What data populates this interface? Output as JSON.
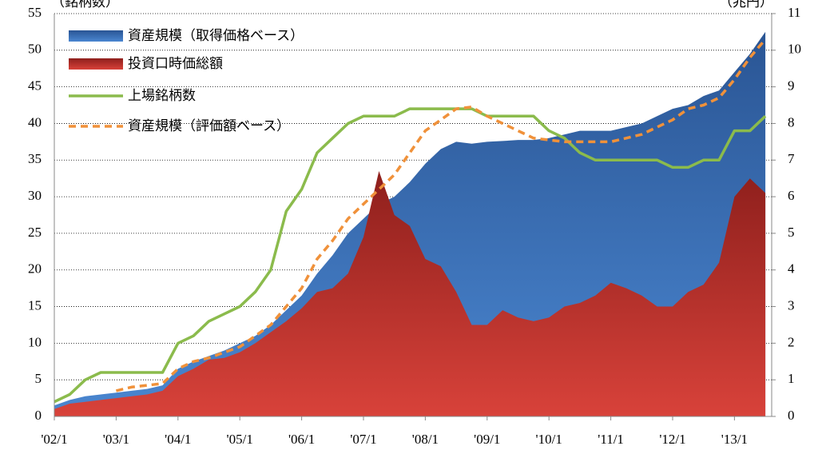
{
  "chart_data": {
    "type": "area",
    "y_label": "（銘柄数）",
    "y2_label": "（兆円）",
    "categories": [
      "'02/1",
      null,
      null,
      null,
      "'03/1",
      null,
      null,
      null,
      "'04/1",
      null,
      null,
      null,
      "'05/1",
      null,
      null,
      null,
      "'06/1",
      null,
      null,
      null,
      "'07/1",
      null,
      null,
      null,
      "'08/1",
      null,
      null,
      null,
      "'09/1",
      null,
      null,
      null,
      "'10/1",
      null,
      null,
      null,
      "'11/1",
      null,
      null,
      null,
      "'12/1",
      null,
      null,
      null,
      "'13/1",
      null,
      null
    ],
    "ylim": [
      0,
      55
    ],
    "yticks": [
      0,
      5,
      10,
      15,
      20,
      25,
      30,
      35,
      40,
      45,
      50,
      55
    ],
    "y2lim": [
      0,
      11
    ],
    "y2ticks": [
      0,
      1,
      2,
      3,
      4,
      5,
      6,
      7,
      8,
      9,
      10,
      11
    ],
    "grid": true,
    "legend": "upper left",
    "series": [
      {
        "name": "資産規模（取得価格ベース）",
        "type": "area",
        "axis": "y2",
        "color": "#2e5e9e",
        "values": [
          0.3,
          0.45,
          0.55,
          0.6,
          0.65,
          0.7,
          0.75,
          0.85,
          1.3,
          1.5,
          1.65,
          1.8,
          2.0,
          2.2,
          2.5,
          2.9,
          3.3,
          3.9,
          4.4,
          5.0,
          5.4,
          5.8,
          6.0,
          6.4,
          6.9,
          7.3,
          7.5,
          7.45,
          7.5,
          7.52,
          7.55,
          7.55,
          7.6,
          7.7,
          7.8,
          7.8,
          7.8,
          7.9,
          8.0,
          8.2,
          8.4,
          8.5,
          8.75,
          8.9,
          9.4,
          9.9,
          10.5
        ]
      },
      {
        "name": "投資口時価総額",
        "type": "area",
        "axis": "y2",
        "color": "#b8302a",
        "values": [
          0.2,
          0.35,
          0.4,
          0.45,
          0.5,
          0.55,
          0.6,
          0.7,
          1.1,
          1.3,
          1.55,
          1.6,
          1.75,
          2.0,
          2.3,
          2.6,
          2.95,
          3.4,
          3.5,
          3.9,
          4.9,
          6.7,
          5.5,
          5.2,
          4.3,
          4.1,
          3.4,
          2.5,
          2.5,
          2.9,
          2.7,
          2.6,
          2.7,
          3.0,
          3.1,
          3.3,
          3.65,
          3.5,
          3.3,
          3.0,
          3.0,
          3.4,
          3.6,
          4.2,
          6.0,
          6.5,
          6.1
        ]
      },
      {
        "name": "上場銘柄数",
        "type": "line",
        "color": "#8bbb4c",
        "values": [
          2,
          3,
          5,
          6,
          6,
          6,
          6,
          6,
          10,
          11,
          13,
          14,
          15,
          17,
          20,
          28,
          31,
          36,
          38,
          40,
          41,
          41,
          41,
          42,
          42,
          42,
          42,
          42,
          41,
          41,
          41,
          41,
          39,
          38,
          36,
          35,
          35,
          35,
          35,
          35,
          34,
          34,
          35,
          35,
          39,
          39,
          41
        ]
      },
      {
        "name": "資産規模（評価額ベース）",
        "type": "line",
        "axis": "y2",
        "color": "#f0913a",
        "dashed": true,
        "values": [
          null,
          null,
          null,
          null,
          0.7,
          0.8,
          0.85,
          0.9,
          1.3,
          1.5,
          1.6,
          1.75,
          1.9,
          2.2,
          2.5,
          3.0,
          3.5,
          4.3,
          4.8,
          5.4,
          5.8,
          6.2,
          6.6,
          7.2,
          7.8,
          8.1,
          8.4,
          8.45,
          8.2,
          8.0,
          7.8,
          7.6,
          7.55,
          7.5,
          7.5,
          7.5,
          7.5,
          7.6,
          7.7,
          7.9,
          8.1,
          8.4,
          8.5,
          8.7,
          9.2,
          9.8,
          10.3
        ]
      }
    ]
  }
}
